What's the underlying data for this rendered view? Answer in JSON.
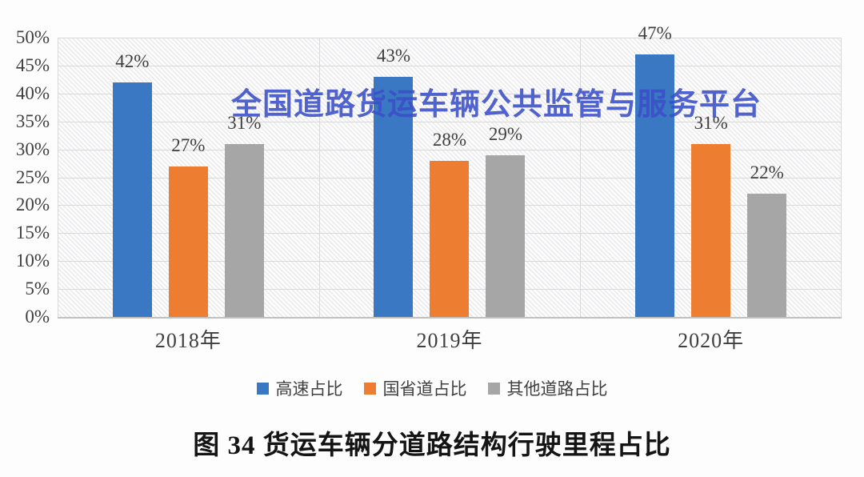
{
  "figure": {
    "background": "#fdfdfd",
    "watermark": {
      "text": "全国道路货运车辆公共监管与服务平台",
      "color": "#3A4FC8"
    },
    "caption": "图 34 货运车辆分道路结构行驶里程占比"
  },
  "chart_data": {
    "type": "bar",
    "title": "图 34 货运车辆分道路结构行驶里程占比",
    "categories": [
      "2018年",
      "2019年",
      "2020年"
    ],
    "series": [
      {
        "name": "高速占比",
        "color": "#3B78C4",
        "values": [
          42,
          43,
          47
        ]
      },
      {
        "name": "国省道占比",
        "color": "#ED7D31",
        "values": [
          27,
          28,
          31
        ]
      },
      {
        "name": "其他道路占比",
        "color": "#A6A6A6",
        "values": [
          31,
          29,
          22
        ]
      }
    ],
    "value_label_suffix": "%",
    "xlabel": "",
    "ylabel": "",
    "ylim": [
      0,
      50
    ],
    "ytick_step": 5,
    "ytick_labels": [
      "0%",
      "5%",
      "10%",
      "15%",
      "20%",
      "25%",
      "30%",
      "35%",
      "40%",
      "45%",
      "50%"
    ],
    "grid": {
      "horizontal": true,
      "category_boundaries": true,
      "plot_hatch": true
    },
    "legend_position": "bottom",
    "colors": {
      "gridline": "#d9d9d9",
      "axis_line": "#c0c0c0",
      "text": "#3f3f3f"
    }
  }
}
